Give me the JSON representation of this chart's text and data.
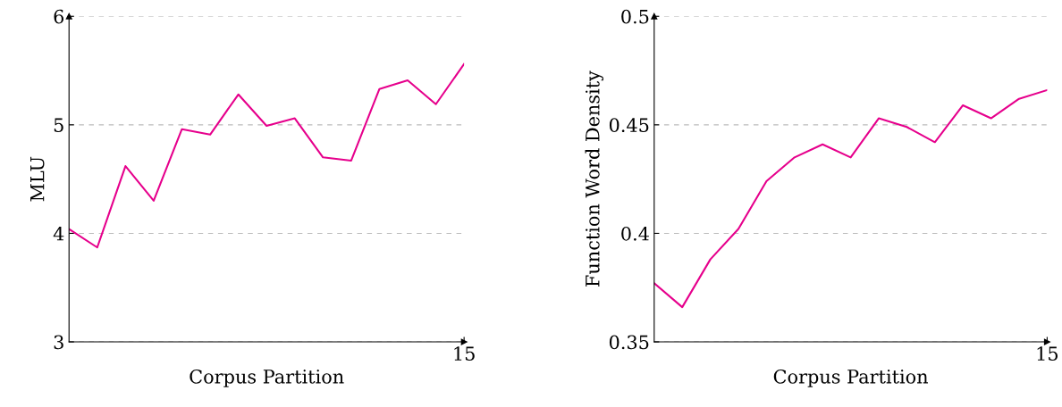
{
  "chart_data": [
    {
      "type": "line",
      "xlabel": "Corpus Partition",
      "ylabel": "MLU",
      "categories": [
        null,
        null,
        null,
        null,
        null,
        null,
        null,
        null,
        null,
        null,
        null,
        null,
        null,
        null,
        "15"
      ],
      "series": [
        {
          "color": "#e6008c",
          "values": [
            4.04,
            3.87,
            4.62,
            4.3,
            4.96,
            4.91,
            5.28,
            4.99,
            5.06,
            4.7,
            4.67,
            5.33,
            5.41,
            5.19,
            5.56
          ]
        }
      ],
      "ylim": [
        3,
        6
      ],
      "yticks": [
        3,
        4,
        5,
        6
      ],
      "grid": "y",
      "line_style": "solid",
      "marker": "none"
    },
    {
      "type": "line",
      "xlabel": "Corpus Partition",
      "ylabel": "Function Word Density",
      "categories": [
        null,
        null,
        null,
        null,
        null,
        null,
        null,
        null,
        null,
        null,
        null,
        null,
        null,
        null,
        "15"
      ],
      "series": [
        {
          "color": "#e6008c",
          "values": [
            0.377,
            0.366,
            0.388,
            0.402,
            0.424,
            0.435,
            0.441,
            0.435,
            0.453,
            0.449,
            0.442,
            0.459,
            0.453,
            0.462,
            0.466
          ]
        }
      ],
      "ylim": [
        0.35,
        0.5
      ],
      "yticks": [
        0.35,
        0.4,
        0.45,
        0.5
      ],
      "grid": "y",
      "line_style": "solid",
      "marker": "none"
    }
  ]
}
